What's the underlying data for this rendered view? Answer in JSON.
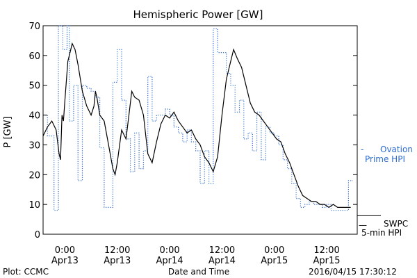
{
  "chart_data": {
    "type": "line",
    "title": "Hemispheric Power [GW]",
    "xlabel": "Date and Time",
    "ylabel": "P [GW]",
    "ylim": [
      0,
      70
    ],
    "yticks": [
      0,
      10,
      20,
      30,
      40,
      50,
      60,
      70
    ],
    "xlim": [
      "2016-04-12 19:00",
      "2016-04-15 19:00"
    ],
    "xticks": [
      {
        "time": "2016-04-13 00:00",
        "label1": "0:00",
        "label2": "Apr13"
      },
      {
        "time": "2016-04-13 12:00",
        "label1": "12:00",
        "label2": "Apr13"
      },
      {
        "time": "2016-04-14 00:00",
        "label1": "0:00",
        "label2": "Apr14"
      },
      {
        "time": "2016-04-14 12:00",
        "label1": "12:00",
        "label2": "Apr14"
      },
      {
        "time": "2016-04-15 00:00",
        "label1": "0:00",
        "label2": "Apr15"
      },
      {
        "time": "2016-04-15 12:00",
        "label1": "12:00",
        "label2": "Apr15"
      }
    ],
    "grid": false,
    "legend_position": "right",
    "series": [
      {
        "name_lines": [
          "SWPC",
          "5-min HPI"
        ],
        "legend_marker": "—",
        "color": "#000000",
        "style": "solid",
        "points": [
          [
            "2016-04-12 19:00",
            33
          ],
          [
            "2016-04-12 20:00",
            36
          ],
          [
            "2016-04-12 21:00",
            38
          ],
          [
            "2016-04-12 22:00",
            35
          ],
          [
            "2016-04-12 22:40",
            27
          ],
          [
            "2016-04-12 23:00",
            25
          ],
          [
            "2016-04-12 23:20",
            40
          ],
          [
            "2016-04-12 23:40",
            38
          ],
          [
            "2016-04-13 00:00",
            45
          ],
          [
            "2016-04-13 00:40",
            58
          ],
          [
            "2016-04-13 01:20",
            62
          ],
          [
            "2016-04-13 01:40",
            64
          ],
          [
            "2016-04-13 02:20",
            62
          ],
          [
            "2016-04-13 03:00",
            57
          ],
          [
            "2016-04-13 04:00",
            48
          ],
          [
            "2016-04-13 05:00",
            43
          ],
          [
            "2016-04-13 06:00",
            40
          ],
          [
            "2016-04-13 06:40",
            43
          ],
          [
            "2016-04-13 07:00",
            48
          ],
          [
            "2016-04-13 07:20",
            46
          ],
          [
            "2016-04-13 08:00",
            40
          ],
          [
            "2016-04-13 09:00",
            38
          ],
          [
            "2016-04-13 10:00",
            30
          ],
          [
            "2016-04-13 11:00",
            22
          ],
          [
            "2016-04-13 11:30",
            20
          ],
          [
            "2016-04-13 12:00",
            24
          ],
          [
            "2016-04-13 13:00",
            35
          ],
          [
            "2016-04-13 14:00",
            32
          ],
          [
            "2016-04-13 14:40",
            40
          ],
          [
            "2016-04-13 15:20",
            48
          ],
          [
            "2016-04-13 16:00",
            46
          ],
          [
            "2016-04-13 17:00",
            45
          ],
          [
            "2016-04-13 18:00",
            40
          ],
          [
            "2016-04-13 19:00",
            27
          ],
          [
            "2016-04-13 20:00",
            24
          ],
          [
            "2016-04-13 21:00",
            31
          ],
          [
            "2016-04-13 22:00",
            37
          ],
          [
            "2016-04-13 23:00",
            40
          ],
          [
            "2016-04-14 00:00",
            39
          ],
          [
            "2016-04-14 01:00",
            41
          ],
          [
            "2016-04-14 02:00",
            38
          ],
          [
            "2016-04-14 03:00",
            36
          ],
          [
            "2016-04-14 04:00",
            34
          ],
          [
            "2016-04-14 05:00",
            35
          ],
          [
            "2016-04-14 06:00",
            32
          ],
          [
            "2016-04-14 07:00",
            30
          ],
          [
            "2016-04-14 08:00",
            26
          ],
          [
            "2016-04-14 09:00",
            24
          ],
          [
            "2016-04-14 10:00",
            21
          ],
          [
            "2016-04-14 11:00",
            26
          ],
          [
            "2016-04-14 12:00",
            40
          ],
          [
            "2016-04-14 13:00",
            52
          ],
          [
            "2016-04-14 14:00",
            58
          ],
          [
            "2016-04-14 14:40",
            62
          ],
          [
            "2016-04-14 15:30",
            59
          ],
          [
            "2016-04-14 16:30",
            56
          ],
          [
            "2016-04-14 17:30",
            50
          ],
          [
            "2016-04-14 18:30",
            44
          ],
          [
            "2016-04-14 19:30",
            41
          ],
          [
            "2016-04-14 20:30",
            40
          ],
          [
            "2016-04-14 21:30",
            38
          ],
          [
            "2016-04-14 22:30",
            36
          ],
          [
            "2016-04-14 23:30",
            34
          ],
          [
            "2016-04-15 00:30",
            32
          ],
          [
            "2016-04-15 01:30",
            31
          ],
          [
            "2016-04-15 02:30",
            27
          ],
          [
            "2016-04-15 03:30",
            24
          ],
          [
            "2016-04-15 04:30",
            20
          ],
          [
            "2016-04-15 05:30",
            16
          ],
          [
            "2016-04-15 06:30",
            13
          ],
          [
            "2016-04-15 07:30",
            12
          ],
          [
            "2016-04-15 08:30",
            11
          ],
          [
            "2016-04-15 09:30",
            11
          ],
          [
            "2016-04-15 10:30",
            10
          ],
          [
            "2016-04-15 11:30",
            10
          ],
          [
            "2016-04-15 12:30",
            9
          ],
          [
            "2016-04-15 13:30",
            10
          ],
          [
            "2016-04-15 14:30",
            9
          ],
          [
            "2016-04-15 15:30",
            9
          ],
          [
            "2016-04-15 16:30",
            9
          ],
          [
            "2016-04-15 17:30",
            9
          ]
        ]
      },
      {
        "name_lines": [
          "Ovation",
          "Prime HPI"
        ],
        "legend_marker": "-",
        "color": "#2f6dd0",
        "style": "dotted-step",
        "points": [
          [
            "2016-04-12 19:00",
            40
          ],
          [
            "2016-04-12 20:00",
            33
          ],
          [
            "2016-04-12 21:30",
            8
          ],
          [
            "2016-04-12 22:30",
            73
          ],
          [
            "2016-04-12 23:30",
            62
          ],
          [
            "2016-04-13 00:30",
            73
          ],
          [
            "2016-04-13 01:00",
            38
          ],
          [
            "2016-04-13 02:00",
            50
          ],
          [
            "2016-04-13 03:00",
            18
          ],
          [
            "2016-04-13 04:00",
            50
          ],
          [
            "2016-04-13 05:00",
            49
          ],
          [
            "2016-04-13 06:00",
            48
          ],
          [
            "2016-04-13 07:00",
            46
          ],
          [
            "2016-04-13 08:00",
            29
          ],
          [
            "2016-04-13 09:00",
            9
          ],
          [
            "2016-04-13 11:00",
            51
          ],
          [
            "2016-04-13 12:00",
            62
          ],
          [
            "2016-04-13 13:00",
            45
          ],
          [
            "2016-04-13 14:00",
            32
          ],
          [
            "2016-04-13 15:00",
            21
          ],
          [
            "2016-04-13 16:00",
            34
          ],
          [
            "2016-04-13 17:00",
            22
          ],
          [
            "2016-04-13 18:00",
            28
          ],
          [
            "2016-04-13 19:00",
            53
          ],
          [
            "2016-04-13 20:00",
            38
          ],
          [
            "2016-04-13 21:00",
            40
          ],
          [
            "2016-04-13 22:00",
            40
          ],
          [
            "2016-04-13 23:00",
            42
          ],
          [
            "2016-04-14 00:00",
            40
          ],
          [
            "2016-04-14 01:00",
            36
          ],
          [
            "2016-04-14 02:00",
            34
          ],
          [
            "2016-04-14 03:00",
            31
          ],
          [
            "2016-04-14 04:00",
            35
          ],
          [
            "2016-04-14 05:00",
            31
          ],
          [
            "2016-04-14 06:00",
            28
          ],
          [
            "2016-04-14 07:00",
            17
          ],
          [
            "2016-04-14 08:00",
            28
          ],
          [
            "2016-04-14 09:00",
            17
          ],
          [
            "2016-04-14 10:00",
            69
          ],
          [
            "2016-04-14 11:00",
            61
          ],
          [
            "2016-04-14 13:00",
            54
          ],
          [
            "2016-04-14 14:00",
            50
          ],
          [
            "2016-04-14 15:00",
            41
          ],
          [
            "2016-04-14 16:00",
            45
          ],
          [
            "2016-04-14 17:00",
            32
          ],
          [
            "2016-04-14 18:00",
            34
          ],
          [
            "2016-04-14 19:00",
            28
          ],
          [
            "2016-04-14 20:00",
            41
          ],
          [
            "2016-04-14 21:00",
            25
          ],
          [
            "2016-04-14 22:00",
            36
          ],
          [
            "2016-04-14 23:00",
            34
          ],
          [
            "2016-04-15 00:00",
            33
          ],
          [
            "2016-04-15 01:00",
            30
          ],
          [
            "2016-04-15 02:00",
            25
          ],
          [
            "2016-04-15 03:00",
            22
          ],
          [
            "2016-04-15 04:00",
            17
          ],
          [
            "2016-04-15 05:00",
            12
          ],
          [
            "2016-04-15 06:00",
            9
          ],
          [
            "2016-04-15 07:00",
            10
          ],
          [
            "2016-04-15 08:00",
            11
          ],
          [
            "2016-04-15 09:00",
            10
          ],
          [
            "2016-04-15 10:00",
            10
          ],
          [
            "2016-04-15 11:00",
            9
          ],
          [
            "2016-04-15 12:00",
            10
          ],
          [
            "2016-04-15 13:00",
            8
          ],
          [
            "2016-04-15 14:00",
            8
          ],
          [
            "2016-04-15 15:00",
            8
          ],
          [
            "2016-04-15 16:00",
            8
          ],
          [
            "2016-04-15 17:00",
            18
          ],
          [
            "2016-04-15 18:00",
            18
          ]
        ]
      }
    ]
  },
  "footer": {
    "left": "Plot: CCMC",
    "right": "2016/04/15 17:30:12"
  }
}
